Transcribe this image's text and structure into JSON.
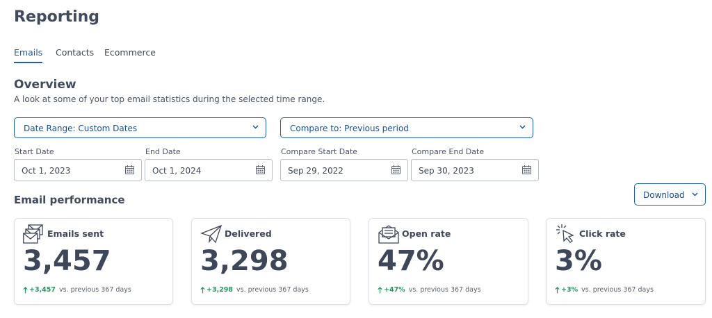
{
  "header": {
    "title": "Reporting"
  },
  "tabs": [
    {
      "label": "Emails",
      "active": true
    },
    {
      "label": "Contacts",
      "active": false
    },
    {
      "label": "Ecommerce",
      "active": false
    }
  ],
  "overview": {
    "title": "Overview",
    "description": "A look at some of your top email statistics during the selected time range."
  },
  "selects": [
    "Date Range: Custom Dates",
    "Compare to: Previous period"
  ],
  "date_fields": [
    {
      "label": "Start Date",
      "value": "Oct 1, 2023"
    },
    {
      "label": "End Date",
      "value": "Oct 1, 2024"
    },
    {
      "label": "Compare Start Date",
      "value": "Sep 29, 2022"
    },
    {
      "label": "Compare End Date",
      "value": "Sep 30, 2023"
    }
  ],
  "performance": {
    "title": "Email performance",
    "download": "Download",
    "cards": [
      {
        "title": "Emails sent",
        "value": "3,457",
        "change": "+3,457",
        "comparison": "vs. previous 367 days"
      },
      {
        "title": "Delivered",
        "value": "3,298",
        "change": "+3,298",
        "comparison": "vs. previous 367 days"
      },
      {
        "title": "Open rate",
        "value": "47%",
        "change": "+47%",
        "comparison": "vs. previous 367 days"
      },
      {
        "title": "Click rate",
        "value": "3%",
        "change": "+3%",
        "comparison": "vs. previous 367 days"
      }
    ]
  }
}
